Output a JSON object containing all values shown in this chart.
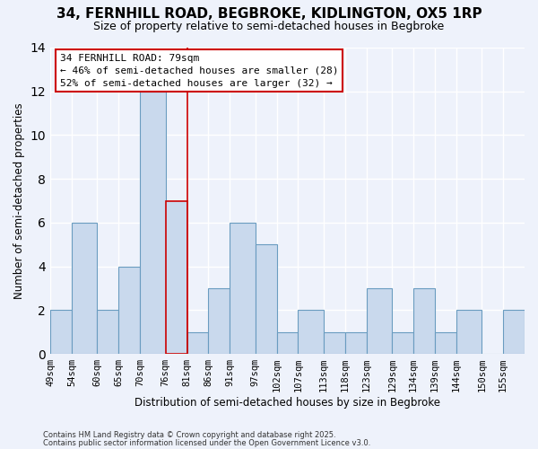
{
  "title": "34, FERNHILL ROAD, BEGBROKE, KIDLINGTON, OX5 1RP",
  "subtitle": "Size of property relative to semi-detached houses in Begbroke",
  "xlabel": "Distribution of semi-detached houses by size in Begbroke",
  "ylabel": "Number of semi-detached properties",
  "bin_labels": [
    "49sqm",
    "54sqm",
    "60sqm",
    "65sqm",
    "70sqm",
    "76sqm",
    "81sqm",
    "86sqm",
    "91sqm",
    "97sqm",
    "102sqm",
    "107sqm",
    "113sqm",
    "118sqm",
    "123sqm",
    "129sqm",
    "134sqm",
    "139sqm",
    "144sqm",
    "150sqm",
    "155sqm"
  ],
  "bin_edges": [
    49,
    54,
    60,
    65,
    70,
    76,
    81,
    86,
    91,
    97,
    102,
    107,
    113,
    118,
    123,
    129,
    134,
    139,
    144,
    150,
    155,
    160
  ],
  "counts": [
    2,
    6,
    2,
    4,
    12,
    7,
    1,
    3,
    6,
    5,
    1,
    2,
    1,
    1,
    3,
    1,
    3,
    1,
    2,
    0,
    2
  ],
  "bar_color": "#c9d9ed",
  "bar_edge_color": "#6a9cc0",
  "highlight_bar_index": 5,
  "highlight_edge_color": "#cc0000",
  "property_value": 79,
  "annotation_line1": "34 FERNHILL ROAD: 79sqm",
  "annotation_line2": "← 46% of semi-detached houses are smaller (28)",
  "annotation_line3": "52% of semi-detached houses are larger (32) →",
  "annotation_box_edge_color": "#cc0000",
  "background_color": "#eef2fb",
  "ylim": [
    0,
    14
  ],
  "footer1": "Contains HM Land Registry data © Crown copyright and database right 2025.",
  "footer2": "Contains public sector information licensed under the Open Government Licence v3.0."
}
